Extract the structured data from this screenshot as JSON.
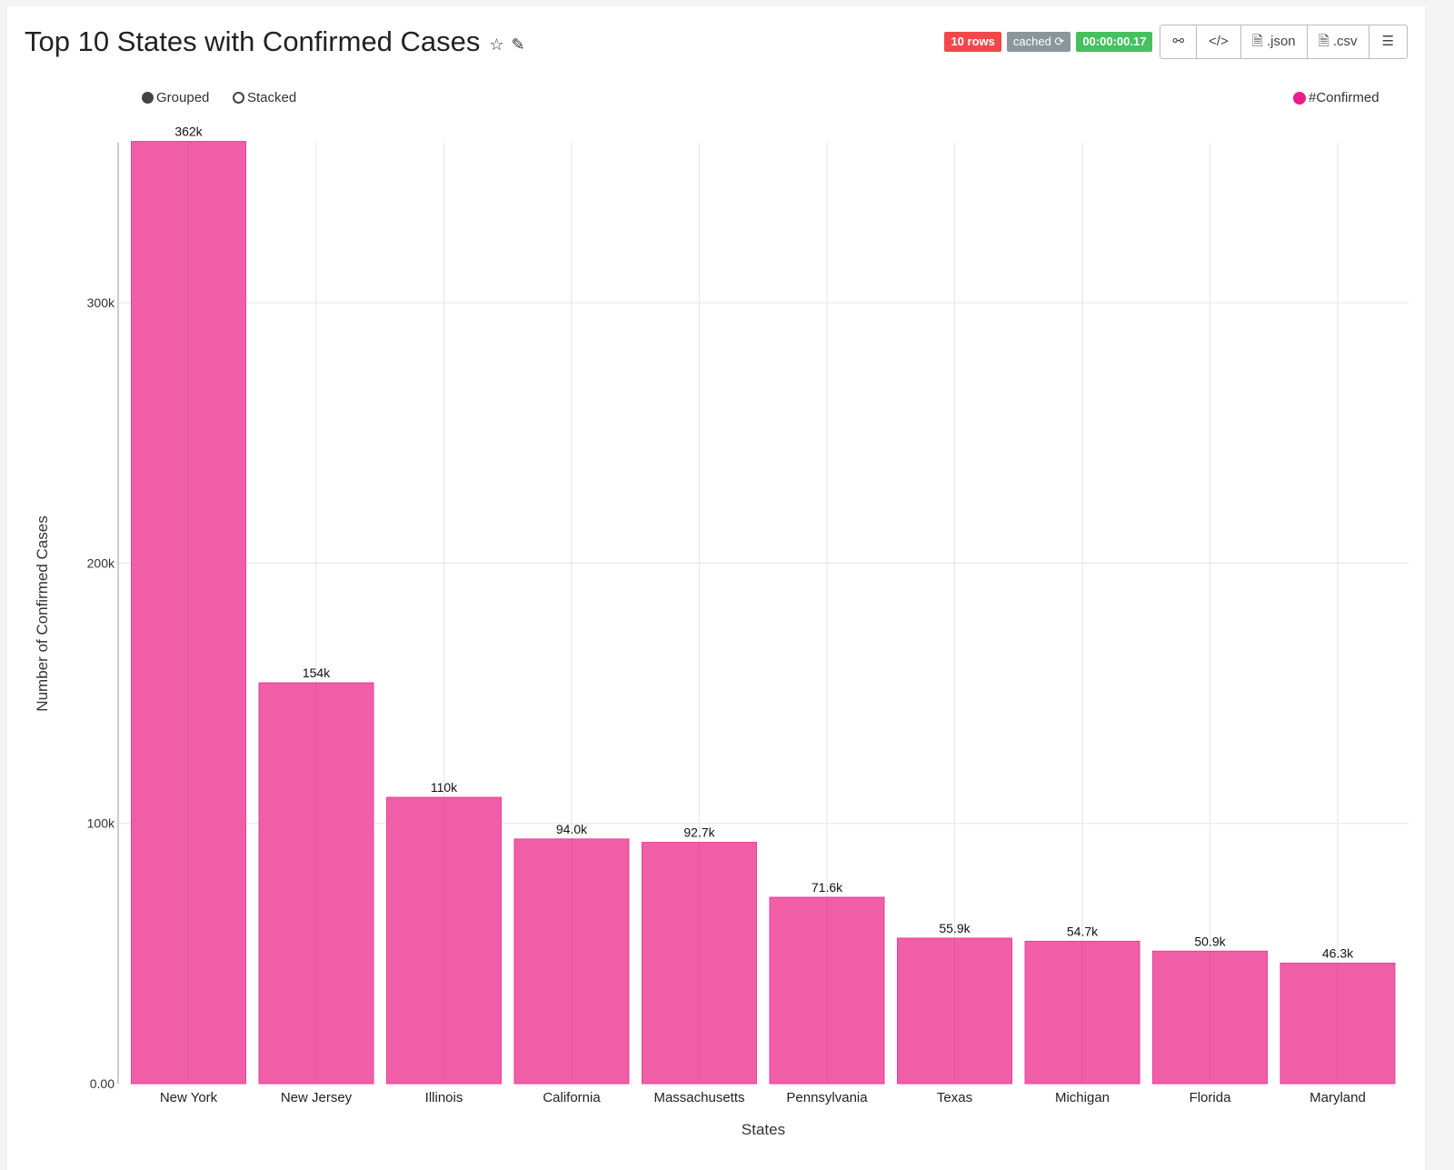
{
  "header": {
    "title": "Top 10 States with Confirmed Cases",
    "icons": [
      "star-icon",
      "edit-icon"
    ],
    "badges": {
      "rows": "10 rows",
      "cached": "cached",
      "time": "00:00:00.17"
    },
    "buttons": {
      "link": "link-icon",
      "code": "code-icon",
      "json": ".json",
      "csv": ".csv",
      "menu": "menu-icon"
    }
  },
  "controls": {
    "grouped": "Grouped",
    "stacked": "Stacked",
    "selected": "Grouped"
  },
  "colors": {
    "bar": "#f15ea8",
    "accent": "#ec1c8c",
    "grid": "#e6e6e6"
  },
  "chart_data": {
    "type": "bar",
    "title": "Top 10 States with Confirmed Cases",
    "xlabel": "States",
    "ylabel": "Number of Confirmed Cases",
    "legend": {
      "entries": [
        "#Confirmed"
      ],
      "placement": "top-right"
    },
    "categories": [
      "New York",
      "New Jersey",
      "Illinois",
      "California",
      "Massachusetts",
      "Pennsylvania",
      "Texas",
      "Michigan",
      "Florida",
      "Maryland"
    ],
    "series": [
      {
        "name": "#Confirmed",
        "values": [
          362000,
          154000,
          110000,
          94000,
          92700,
          71600,
          55900,
          54700,
          50900,
          46300
        ]
      }
    ],
    "data_labels": [
      "362k",
      "154k",
      "110k",
      "94.0k",
      "92.7k",
      "71.6k",
      "55.9k",
      "54.7k",
      "50.9k",
      "46.3k"
    ],
    "yticks": [
      0,
      100000,
      200000,
      300000
    ],
    "ytick_labels": [
      "0.00",
      "100k",
      "200k",
      "300k"
    ],
    "ylim": [
      0,
      361500
    ],
    "grid": true
  }
}
